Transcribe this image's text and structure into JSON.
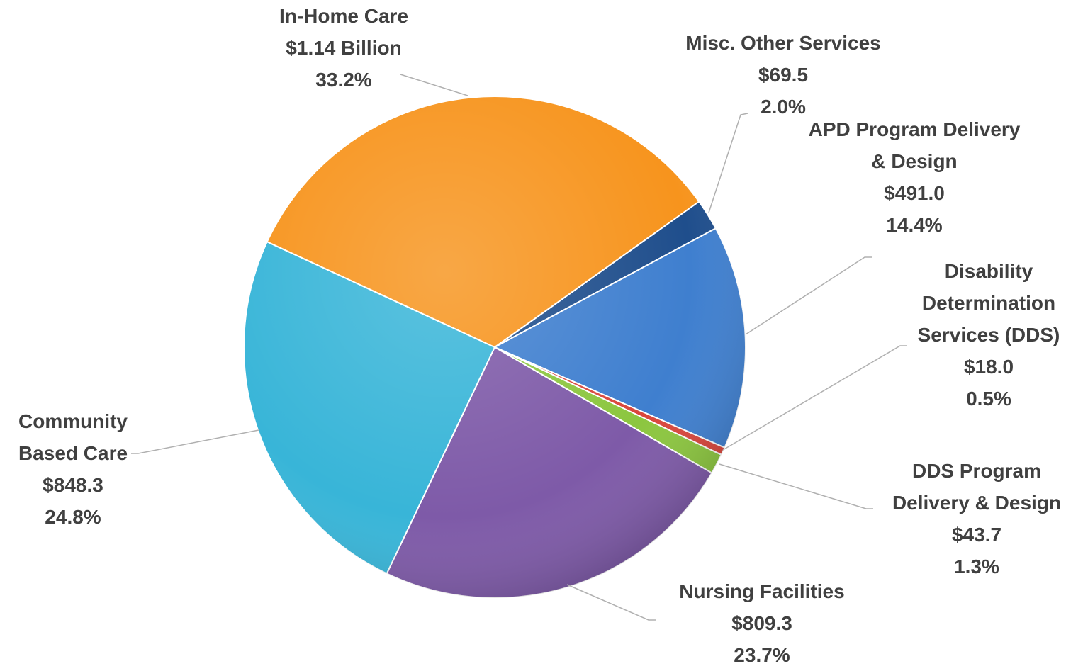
{
  "chart_data": {
    "type": "pie",
    "categories": [
      "Misc. Other Services",
      "APD Program Delivery & Design",
      "Disability Determination Services (DDS)",
      "DDS Program Delivery & Design",
      "Nursing Facilities",
      "Community Based Care",
      "In-Home Care"
    ],
    "values": [
      2.0,
      14.4,
      0.5,
      1.3,
      23.7,
      24.8,
      33.2
    ],
    "value_labels": [
      "2.0%",
      "14.4%",
      "0.5%",
      "1.3%",
      "23.7%",
      "24.8%",
      "33.2%"
    ],
    "amount_labels": [
      "$69.5",
      "$491.0",
      "$18.0",
      "$43.7",
      "$809.3",
      "$848.3",
      "$1.14 Billion"
    ],
    "colors": [
      "#1f4e8c",
      "#3f7fcf",
      "#d9463b",
      "#8cc63f",
      "#7e5aa8",
      "#38b5d8",
      "#f7941d"
    ]
  }
}
